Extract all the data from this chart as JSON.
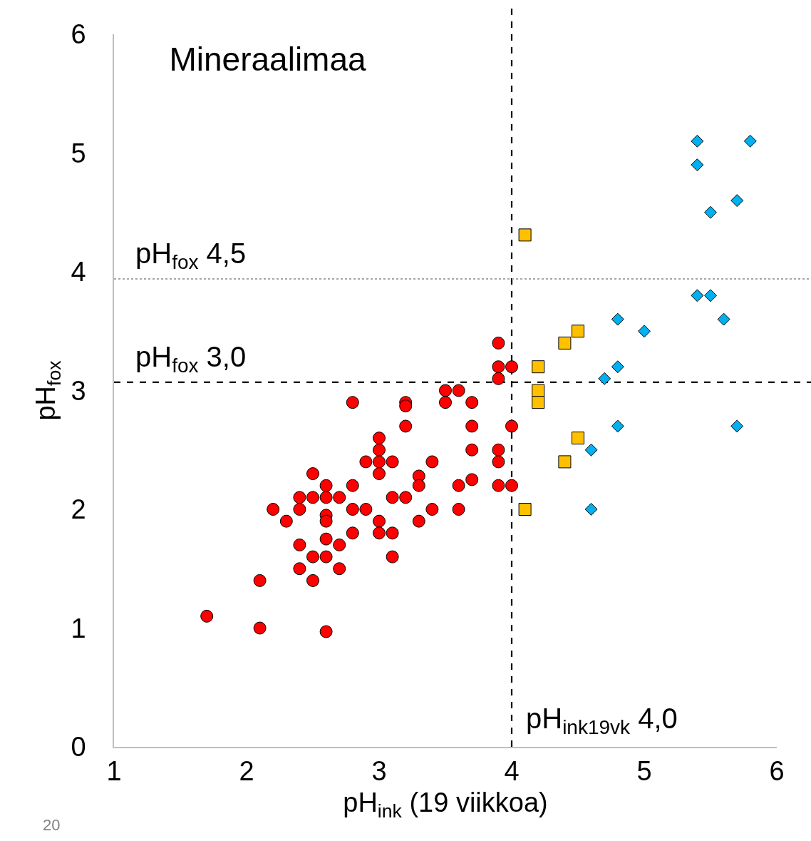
{
  "chart_data": {
    "type": "scatter",
    "title": "Mineraalimaa",
    "xlabel": "pH$_{ink}$ (19 viikkoa)",
    "ylabel": "pH$_{fox}$",
    "xlim": [
      1,
      6
    ],
    "xticks": [
      1,
      2,
      3,
      4,
      5,
      6
    ],
    "ylim": [
      0,
      6
    ],
    "yticks": [
      0,
      1,
      2,
      3,
      4,
      5,
      6
    ],
    "grid": false,
    "legend": false,
    "series": [
      {
        "color": "#ff0000",
        "marker": "circle",
        "x": [
          1.7,
          2.1,
          2.1,
          2.6,
          2.2,
          2.3,
          2.4,
          2.4,
          2.5,
          2.5,
          2.6,
          2.6,
          2.6,
          2.6,
          2.6,
          2.6,
          2.5,
          2.4,
          2.4,
          2.5,
          2.7,
          2.7,
          2.7,
          2.8,
          2.8,
          2.8,
          2.8,
          2.9,
          2.9,
          3.0,
          3.0,
          3.0,
          3.0,
          3.0,
          3.0,
          3.1,
          3.1,
          3.1,
          3.1,
          3.2,
          3.2,
          3.2,
          3.2,
          3.3,
          3.3,
          3.3,
          3.4,
          3.4,
          3.5,
          3.5,
          3.6,
          3.6,
          3.6,
          3.7,
          3.7,
          3.7,
          3.7,
          3.9,
          3.9,
          3.9,
          3.9,
          3.9,
          3.9,
          4.0,
          4.0,
          4.0
        ],
        "values": [
          1.1,
          1.4,
          1.0,
          0.97,
          2.0,
          1.9,
          2.0,
          2.1,
          2.3,
          2.1,
          2.2,
          2.1,
          1.95,
          1.9,
          1.75,
          1.6,
          1.6,
          1.7,
          1.5,
          1.4,
          2.1,
          1.7,
          1.5,
          2.2,
          2.0,
          1.8,
          2.9,
          2.0,
          2.4,
          2.6,
          2.5,
          2.4,
          2.3,
          1.9,
          1.8,
          2.4,
          2.1,
          1.8,
          1.6,
          2.9,
          2.87,
          2.7,
          2.1,
          2.28,
          2.2,
          1.9,
          2.4,
          2.0,
          3.0,
          2.9,
          3.0,
          2.2,
          2.0,
          2.9,
          2.7,
          2.5,
          2.25,
          3.4,
          3.2,
          3.1,
          2.5,
          2.4,
          2.2,
          3.2,
          2.7,
          2.2
        ]
      },
      {
        "color": "#ffc000",
        "marker": "square",
        "x": [
          4.1,
          4.1,
          4.2,
          4.2,
          4.2,
          4.4,
          4.5,
          4.5,
          4.4
        ],
        "values": [
          4.31,
          2.0,
          3.2,
          3.0,
          2.9,
          3.4,
          3.5,
          2.6,
          2.4
        ]
      },
      {
        "color": "#00b0f0",
        "marker": "diamond",
        "x": [
          5.4,
          5.4,
          5.8,
          5.7,
          5.5,
          5.4,
          5.5,
          5.6,
          4.8,
          5.0,
          4.8,
          4.7,
          4.8,
          4.6,
          4.6,
          5.7
        ],
        "values": [
          5.1,
          4.9,
          5.1,
          4.6,
          4.5,
          3.8,
          3.8,
          3.6,
          3.6,
          3.5,
          3.2,
          3.1,
          2.7,
          2.5,
          2.0,
          2.7
        ]
      }
    ],
    "ref_lines": [
      {
        "axis": "x",
        "value": 4.0,
        "label": "pH$_{ink19vk}$ 4,0",
        "color": "#000000",
        "line_style": "dashed"
      },
      {
        "axis": "y",
        "value": 3.07,
        "label": "pH$_{fox}$ 3,0",
        "color": "#000000",
        "line_style": "dashed"
      },
      {
        "axis": "y",
        "value": 3.94,
        "label": "pH$_{fox}$ 4,5",
        "color": "#a6a6a6",
        "line_style": "dotted"
      }
    ],
    "annotations": [
      "20"
    ]
  }
}
